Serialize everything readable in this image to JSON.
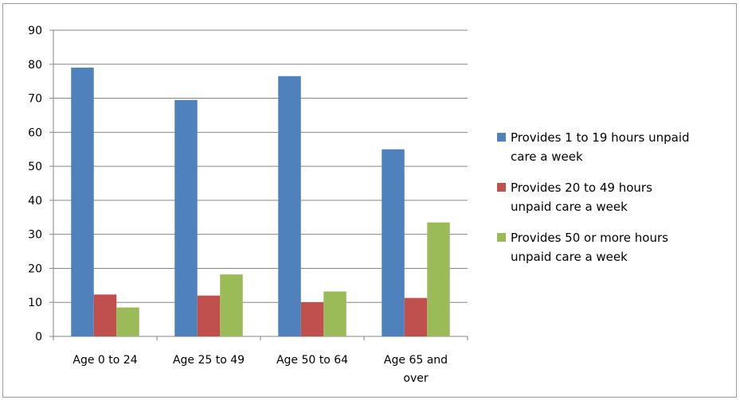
{
  "chart_data": {
    "type": "bar",
    "categories": [
      [
        "Age 0 to 24"
      ],
      [
        "Age 25 to 49"
      ],
      [
        "Age 50 to 64"
      ],
      [
        "Age 65 and",
        "over"
      ]
    ],
    "series": [
      {
        "name": [
          "Provides 1 to 19 hours unpaid",
          "care a week"
        ],
        "color": "#4f81bd",
        "values": [
          79,
          69.5,
          76.5,
          55
        ]
      },
      {
        "name": [
          "Provides 20 to 49 hours",
          "unpaid care a week"
        ],
        "color": "#c0504d",
        "values": [
          12.3,
          12,
          10,
          11.3
        ]
      },
      {
        "name": [
          "Provides 50 or more hours",
          "unpaid care a week"
        ],
        "color": "#9bbb59",
        "values": [
          8.5,
          18.2,
          13.2,
          33.5
        ]
      }
    ],
    "yticks": [
      "0",
      "10",
      "20",
      "30",
      "40",
      "50",
      "60",
      "70",
      "80",
      "90"
    ],
    "ylim": [
      0,
      90
    ],
    "grid": true,
    "legend": "right"
  }
}
